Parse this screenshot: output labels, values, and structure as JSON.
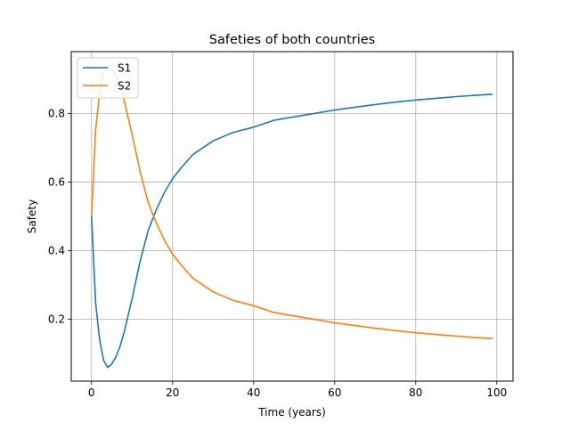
{
  "chart_data": {
    "type": "line",
    "title": "Safeties of both countries",
    "xlabel": "Time (years)",
    "ylabel": "Safety",
    "xlim": [
      -5,
      104
    ],
    "ylim": [
      0.02,
      0.98
    ],
    "xticks": [
      0,
      20,
      40,
      60,
      80,
      100
    ],
    "xtick_labels": [
      "0",
      "20",
      "40",
      "60",
      "80",
      "100"
    ],
    "yticks": [
      0.2,
      0.4,
      0.6,
      0.8
    ],
    "ytick_labels": [
      "0.2",
      "0.4",
      "0.6",
      "0.8"
    ],
    "grid": true,
    "legend": {
      "position": "top-left"
    },
    "x": [
      0,
      1,
      2,
      3,
      4,
      5,
      6,
      7,
      8,
      9,
      10,
      12,
      14,
      16,
      18,
      20,
      22,
      25,
      30,
      35,
      40,
      45,
      50,
      55,
      60,
      65,
      70,
      75,
      80,
      85,
      90,
      95,
      99
    ],
    "series": [
      {
        "name": "S1",
        "color": "#1f77b4",
        "values": [
          0.5,
          0.25,
          0.14,
          0.08,
          0.06,
          0.07,
          0.09,
          0.12,
          0.16,
          0.21,
          0.26,
          0.37,
          0.46,
          0.52,
          0.57,
          0.61,
          0.64,
          0.68,
          0.72,
          0.745,
          0.76,
          0.78,
          0.79,
          0.8,
          0.81,
          0.818,
          0.826,
          0.833,
          0.839,
          0.844,
          0.849,
          0.853,
          0.856
        ]
      },
      {
        "name": "S2",
        "color": "#ff7f0e",
        "values": [
          0.5,
          0.75,
          0.86,
          0.92,
          0.94,
          0.93,
          0.91,
          0.88,
          0.84,
          0.79,
          0.74,
          0.63,
          0.54,
          0.48,
          0.43,
          0.39,
          0.36,
          0.32,
          0.28,
          0.255,
          0.24,
          0.22,
          0.21,
          0.2,
          0.19,
          0.182,
          0.174,
          0.167,
          0.161,
          0.156,
          0.151,
          0.147,
          0.144
        ]
      }
    ]
  }
}
